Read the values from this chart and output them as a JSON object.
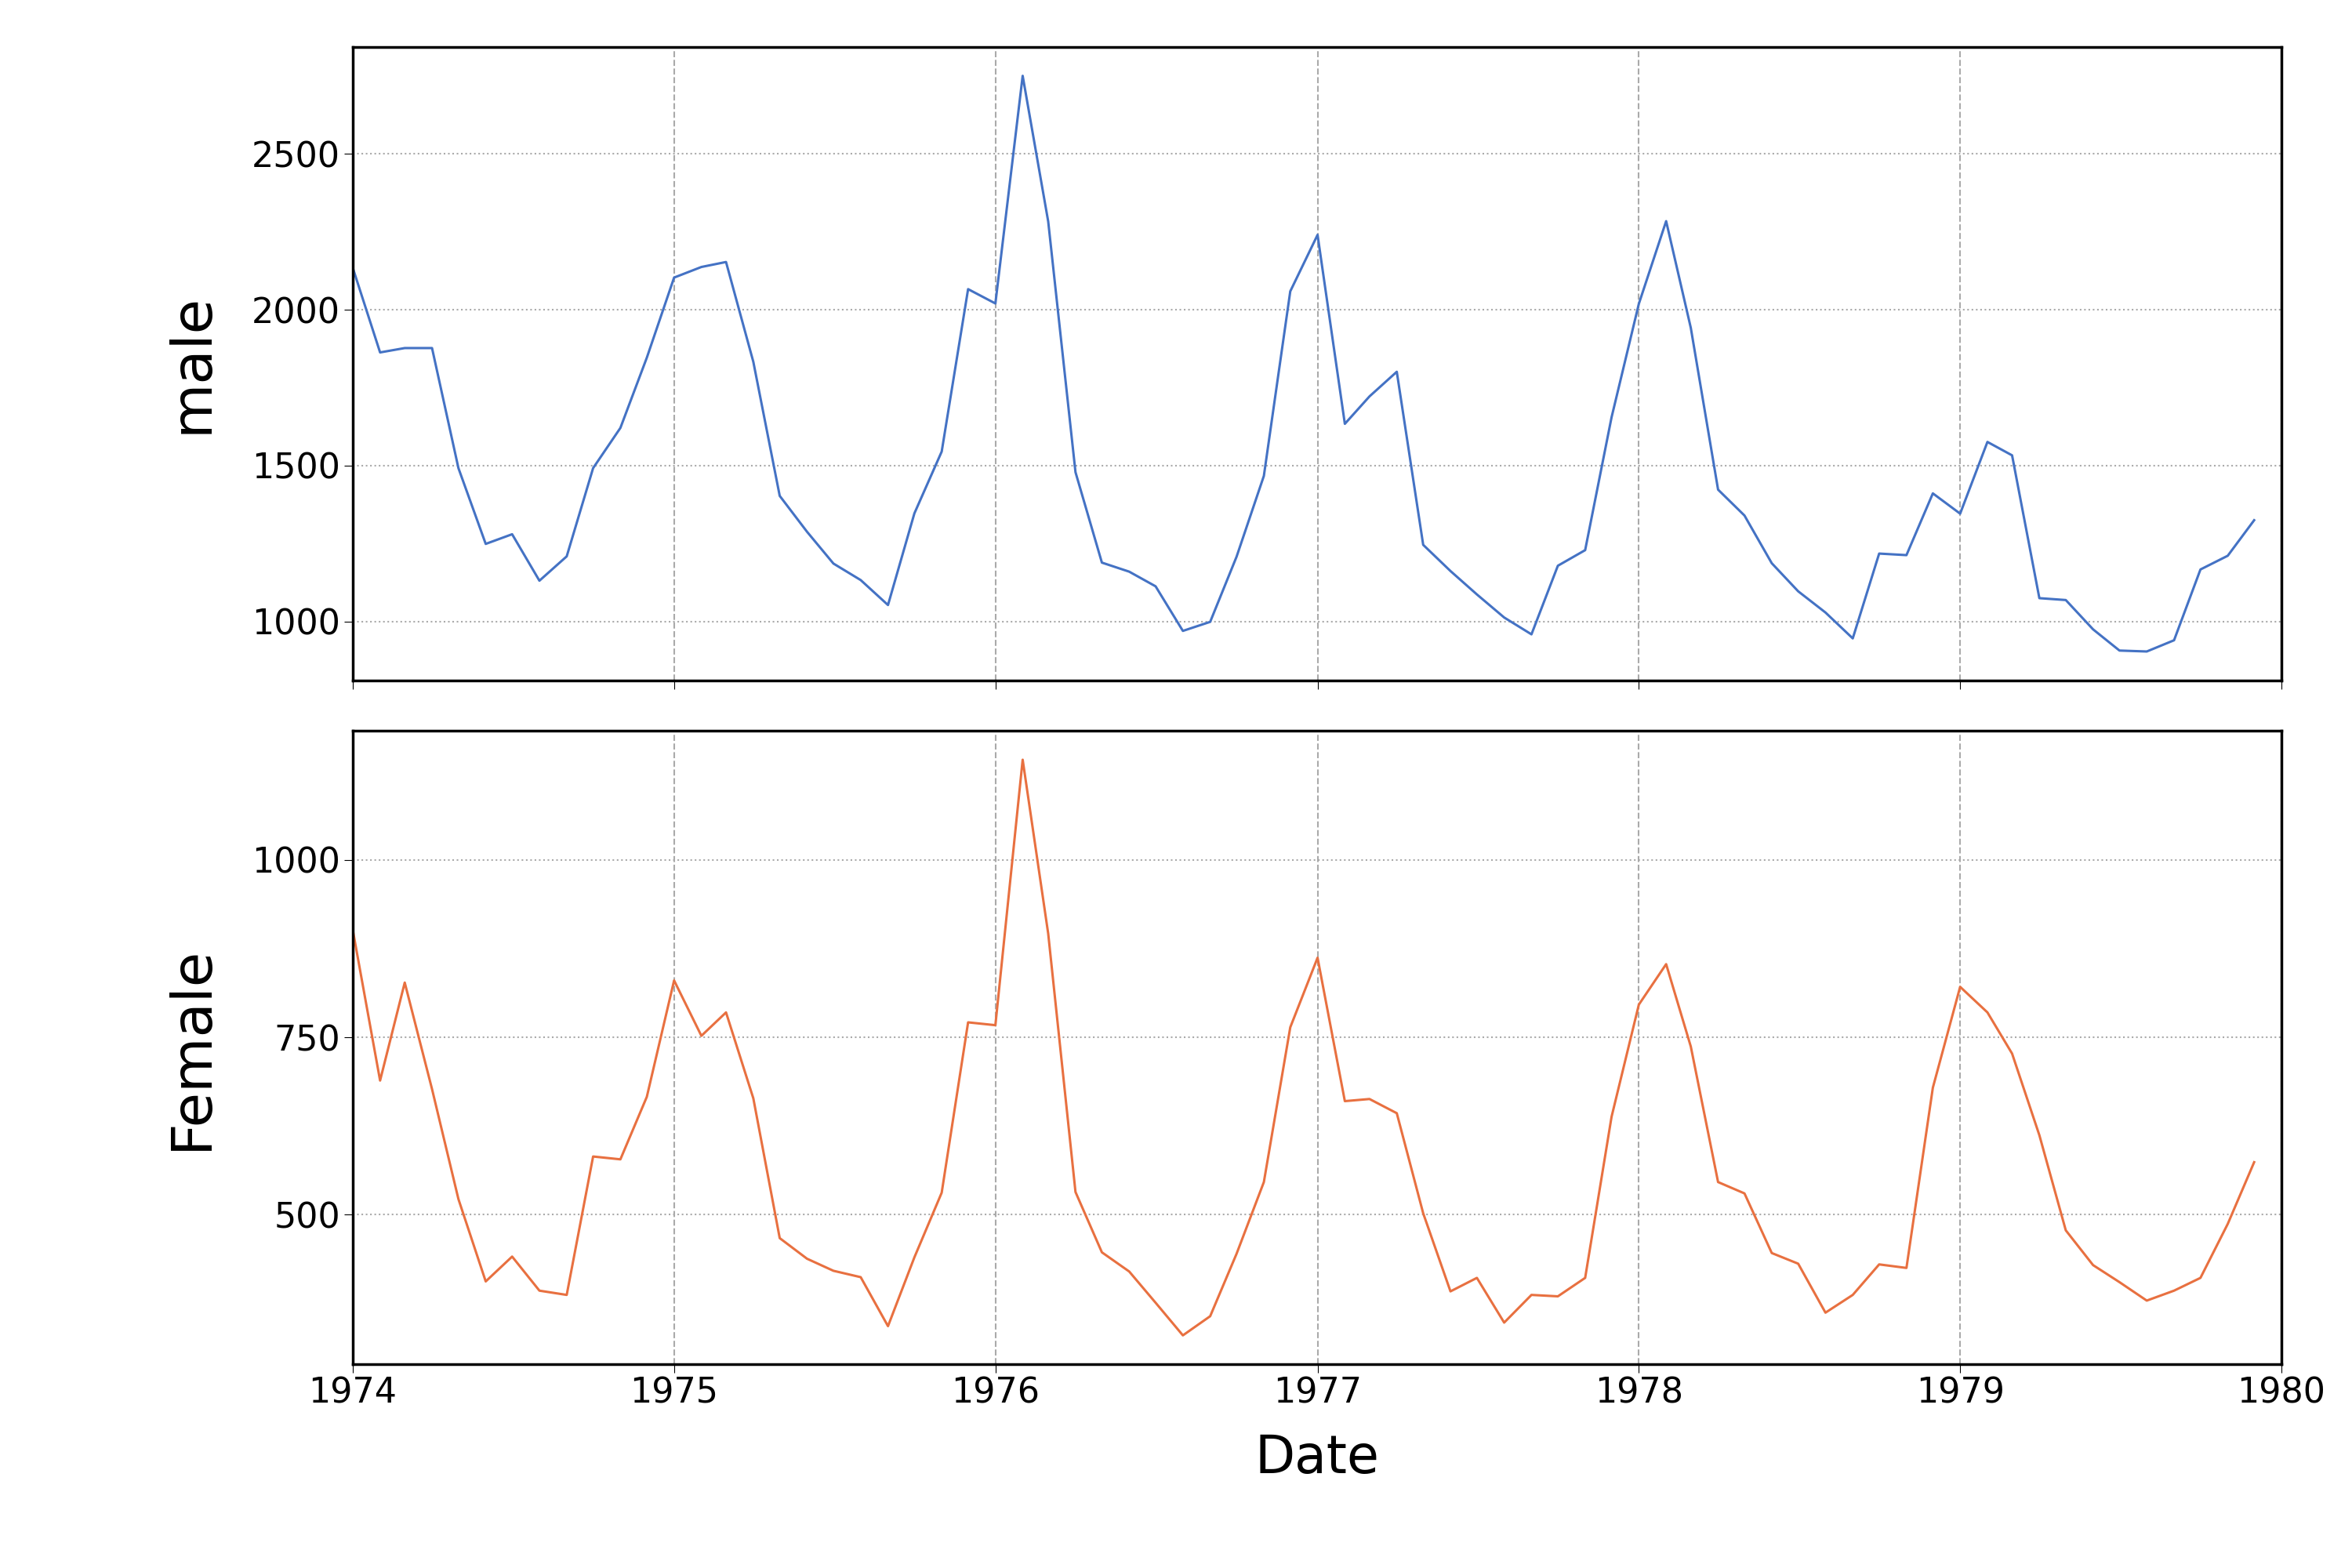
{
  "male": [
    2134,
    1863,
    1877,
    1877,
    1492,
    1249,
    1280,
    1131,
    1209,
    1492,
    1621,
    1846,
    2103,
    2137,
    2153,
    1833,
    1403,
    1288,
    1186,
    1133,
    1053,
    1347,
    1545,
    2066,
    2020,
    2750,
    2283,
    1479,
    1189,
    1160,
    1113,
    970,
    999,
    1208,
    1467,
    2059,
    2240,
    1634,
    1722,
    1801,
    1246,
    1162,
    1087,
    1013,
    959,
    1179,
    1229,
    1655,
    2019,
    2284,
    1942,
    1423,
    1340,
    1187,
    1097,
    1029,
    946,
    1218,
    1213,
    1411,
    1346,
    1576,
    1533,
    1075,
    1069,
    975,
    907,
    904,
    940,
    1167,
    1211,
    1325
  ],
  "female": [
    901,
    689,
    827,
    677,
    522,
    406,
    441,
    393,
    387,
    582,
    578,
    666,
    830,
    752,
    785,
    664,
    467,
    438,
    421,
    412,
    343,
    440,
    531,
    771,
    767,
    1141,
    896,
    532,
    447,
    420,
    376,
    330,
    357,
    445,
    546,
    764,
    862,
    660,
    663,
    643,
    502,
    392,
    411,
    348,
    387,
    385,
    411,
    638,
    796,
    853,
    737,
    546,
    530,
    446,
    431,
    362,
    387,
    430,
    425,
    679,
    821,
    785,
    727,
    612,
    478,
    429,
    405,
    379,
    393,
    411,
    487,
    574
  ],
  "start_year": 1974,
  "start_month": 1,
  "male_color": "#4472C4",
  "female_color": "#E87040",
  "male_label": "male",
  "female_label": "Female",
  "xlabel": "Date",
  "male_yticks": [
    1000,
    1500,
    2000,
    2500
  ],
  "female_yticks": [
    500,
    750,
    1000
  ],
  "line_width": 2.2,
  "vgrid_color": "#aaaaaa",
  "vgrid_style": "--",
  "hgrid_color": "#aaaaaa",
  "hgrid_style": ":",
  "background_color": "#ffffff",
  "ylabel_fontsize": 52,
  "tick_fontsize": 32,
  "xlabel_fontsize": 48
}
